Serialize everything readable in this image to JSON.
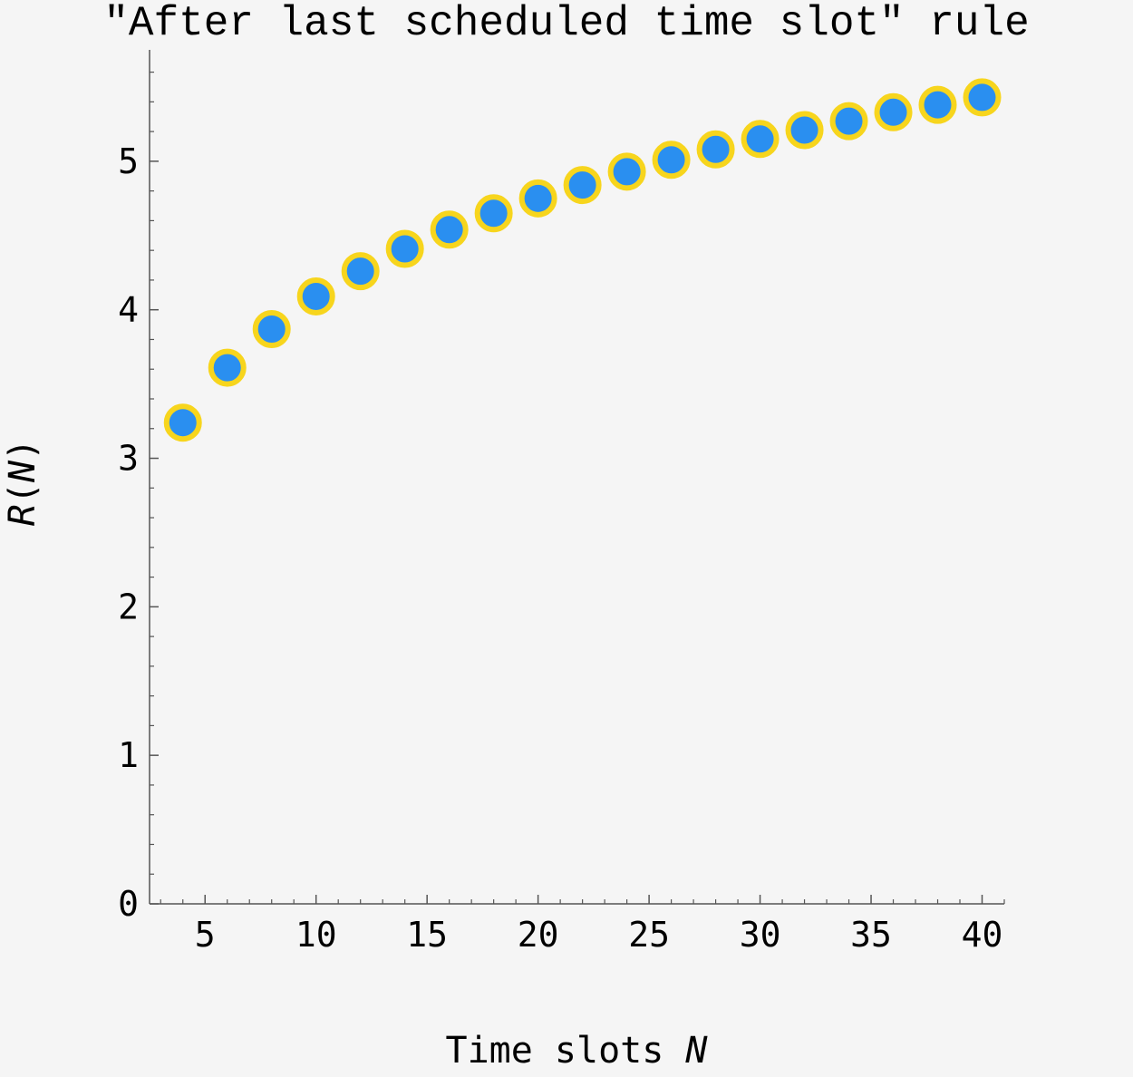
{
  "chart_data": {
    "type": "scatter",
    "title": "\"After last scheduled time slot\" rule",
    "xlabel_text": "Time slots ",
    "xlabel_var": "N",
    "ylabel_text": "R",
    "ylabel_paren_open": "(",
    "ylabel_var": "N",
    "ylabel_paren_close": ")",
    "xlim": [
      2.5,
      41
    ],
    "ylim": [
      0,
      5.75
    ],
    "xticks": [
      5,
      10,
      15,
      20,
      25,
      30,
      35,
      40
    ],
    "yticks": [
      0,
      1,
      2,
      3,
      4,
      5
    ],
    "x_minor_step": 1,
    "y_minor_step": 0.2,
    "marker_fill": "#2a8ff0",
    "marker_edge": "#f7d51d",
    "series": [
      {
        "x": [
          4,
          6,
          8,
          10,
          12,
          14,
          16,
          18,
          20,
          22,
          24,
          26,
          28,
          30,
          32,
          34,
          36,
          38,
          40
        ],
        "y": [
          3.24,
          3.61,
          3.87,
          4.09,
          4.26,
          4.41,
          4.54,
          4.65,
          4.75,
          4.84,
          4.93,
          5.01,
          5.08,
          5.15,
          5.21,
          5.27,
          5.33,
          5.38,
          5.43
        ]
      }
    ]
  }
}
